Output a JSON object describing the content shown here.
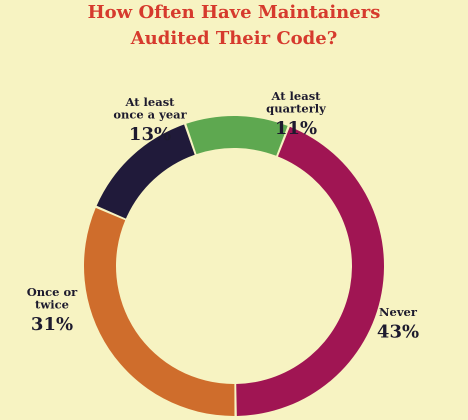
{
  "title_lines": [
    "How Often Have Maintainers",
    "Audited Their Code?"
  ],
  "colors": {
    "background": "#f7f3c2",
    "title": "#d63a2d",
    "label_text": "#1d1a2e"
  },
  "chart_data": {
    "type": "pie",
    "donut": true,
    "title": "How Often Have Maintainers Audited Their Code?",
    "unit": "%",
    "slices": [
      {
        "label_lines": [
          "At least",
          "quarterly"
        ],
        "value": 11,
        "value_label": "11%",
        "color": "#5ea850"
      },
      {
        "label_lines": [
          "Never"
        ],
        "value": 43,
        "value_label": "43%",
        "color": "#a01553"
      },
      {
        "label_lines": [
          "Once or",
          "twice"
        ],
        "value": 31,
        "value_label": "31%",
        "color": "#cf6d2c"
      },
      {
        "label_lines": [
          "At least",
          "once a year"
        ],
        "value": 13,
        "value_label": "13%",
        "color": "#201a3a"
      }
    ]
  }
}
